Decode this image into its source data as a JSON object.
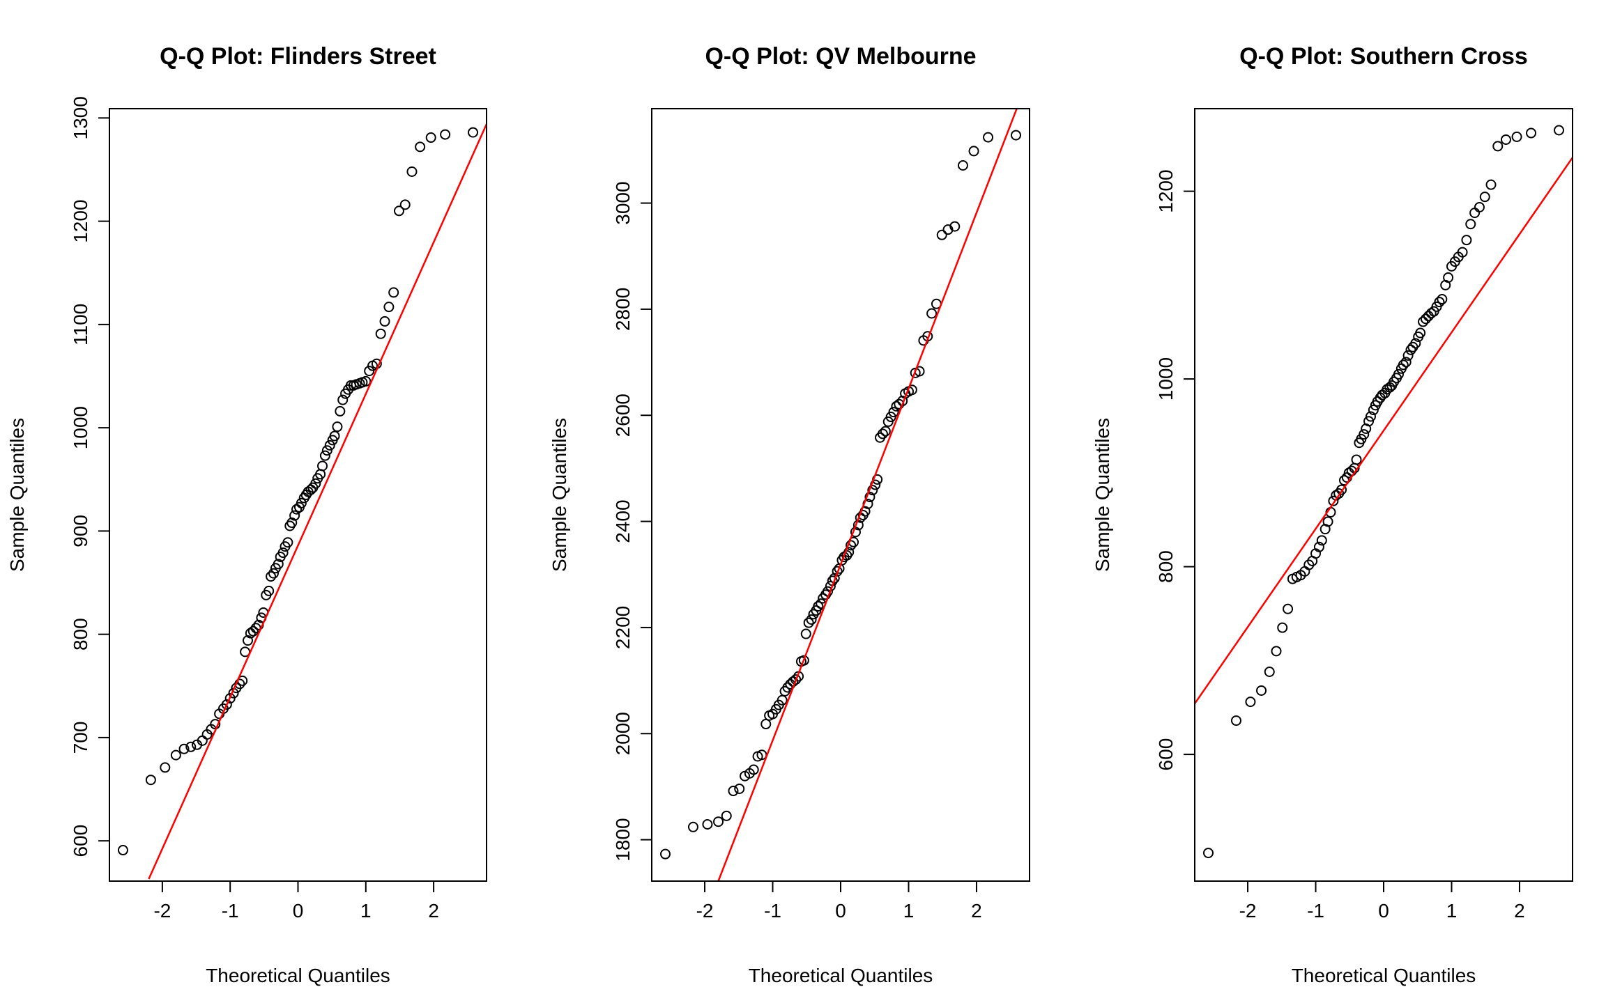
{
  "colors": {
    "point": "#000000",
    "line": "#ff0000",
    "frame": "#000000",
    "background": "#ffffff"
  },
  "chart_data": [
    {
      "type": "scatter",
      "title": "Q-Q Plot: Flinders Street",
      "xlabel": "Theoretical Quantiles",
      "ylabel": "Sample Quantiles",
      "xlim": [
        -2.78,
        2.78
      ],
      "ylim": [
        561,
        1309
      ],
      "xticks": [
        -2,
        -1,
        0,
        1,
        2
      ],
      "xtick_labels": [
        "-2",
        "-1",
        "0",
        "1",
        "2"
      ],
      "yticks": [
        600,
        700,
        800,
        900,
        1000,
        1100,
        1200,
        1300
      ],
      "ytick_labels": [
        "600",
        "700",
        "800",
        "900",
        "1000",
        "1100",
        "1200",
        "1300"
      ],
      "ref_line": {
        "x": [
          -2.2,
          2.8
        ],
        "y": [
          563,
          1297
        ]
      },
      "x": [
        -2.58,
        -2.17,
        -1.96,
        -1.8,
        -1.68,
        -1.58,
        -1.49,
        -1.41,
        -1.34,
        -1.28,
        -1.22,
        -1.16,
        -1.1,
        -1.05,
        -1.0,
        -0.95,
        -0.91,
        -0.86,
        -0.82,
        -0.78,
        -0.74,
        -0.7,
        -0.66,
        -0.62,
        -0.58,
        -0.54,
        -0.51,
        -0.47,
        -0.43,
        -0.4,
        -0.36,
        -0.33,
        -0.29,
        -0.26,
        -0.22,
        -0.19,
        -0.15,
        -0.12,
        -0.09,
        -0.05,
        -0.02,
        0.02,
        0.05,
        0.09,
        0.12,
        0.15,
        0.19,
        0.22,
        0.26,
        0.29,
        0.33,
        0.36,
        0.4,
        0.43,
        0.47,
        0.51,
        0.54,
        0.58,
        0.62,
        0.66,
        0.7,
        0.74,
        0.78,
        0.82,
        0.86,
        0.91,
        0.95,
        1.0,
        1.05,
        1.1,
        1.16,
        1.22,
        1.28,
        1.34,
        1.41,
        1.49,
        1.58,
        1.68,
        1.8,
        1.96,
        2.17,
        2.58
      ],
      "y": [
        591,
        659,
        671,
        683,
        689,
        691,
        693,
        697,
        703,
        708,
        713,
        723,
        728,
        732,
        738,
        743,
        748,
        752,
        755,
        783,
        794,
        801,
        803,
        806,
        809,
        816,
        821,
        838,
        842,
        856,
        859,
        864,
        868,
        875,
        879,
        885,
        889,
        905,
        908,
        915,
        921,
        923,
        927,
        932,
        935,
        938,
        940,
        942,
        946,
        951,
        955,
        963,
        973,
        978,
        983,
        988,
        992,
        1001,
        1016,
        1027,
        1033,
        1037,
        1041,
        1041,
        1042,
        1043,
        1044,
        1045,
        1055,
        1060,
        1062,
        1091,
        1103,
        1117,
        1131,
        1210,
        1216,
        1248,
        1272,
        1281,
        1284,
        1286
      ]
    },
    {
      "type": "scatter",
      "title": "Q-Q Plot: QV Melbourne",
      "xlabel": "Theoretical Quantiles",
      "ylabel": "Sample Quantiles",
      "xlim": [
        -2.78,
        2.78
      ],
      "ylim": [
        1722,
        3178
      ],
      "xticks": [
        -2,
        -1,
        0,
        1,
        2
      ],
      "xtick_labels": [
        "-2",
        "-1",
        "0",
        "1",
        "2"
      ],
      "yticks": [
        1800,
        2000,
        2200,
        2400,
        2600,
        2800,
        3000
      ],
      "ytick_labels": [
        "1800",
        "2000",
        "2200",
        "2400",
        "2600",
        "2800",
        "3000"
      ],
      "ref_line": {
        "x": [
          -1.8,
          2.8
        ],
        "y": [
          1722,
          3247
        ]
      },
      "x": [
        -2.58,
        -2.17,
        -1.96,
        -1.8,
        -1.68,
        -1.58,
        -1.49,
        -1.41,
        -1.34,
        -1.28,
        -1.22,
        -1.16,
        -1.1,
        -1.05,
        -1.0,
        -0.95,
        -0.91,
        -0.86,
        -0.82,
        -0.78,
        -0.74,
        -0.7,
        -0.66,
        -0.62,
        -0.58,
        -0.54,
        -0.51,
        -0.47,
        -0.43,
        -0.4,
        -0.36,
        -0.33,
        -0.29,
        -0.26,
        -0.22,
        -0.19,
        -0.15,
        -0.12,
        -0.09,
        -0.05,
        -0.02,
        0.02,
        0.05,
        0.09,
        0.12,
        0.15,
        0.19,
        0.22,
        0.26,
        0.29,
        0.33,
        0.36,
        0.4,
        0.43,
        0.47,
        0.51,
        0.54,
        0.58,
        0.62,
        0.66,
        0.7,
        0.74,
        0.78,
        0.82,
        0.86,
        0.91,
        0.95,
        1.0,
        1.05,
        1.1,
        1.16,
        1.22,
        1.28,
        1.34,
        1.41,
        1.49,
        1.58,
        1.68,
        1.8,
        1.96,
        2.17,
        2.58
      ],
      "y": [
        1773,
        1824,
        1829,
        1834,
        1845,
        1892,
        1896,
        1920,
        1925,
        1932,
        1957,
        1960,
        2018,
        2034,
        2037,
        2046,
        2054,
        2063,
        2080,
        2087,
        2093,
        2098,
        2102,
        2108,
        2136,
        2138,
        2188,
        2209,
        2215,
        2225,
        2232,
        2240,
        2245,
        2255,
        2262,
        2268,
        2278,
        2288,
        2293,
        2306,
        2311,
        2327,
        2333,
        2336,
        2342,
        2355,
        2361,
        2380,
        2393,
        2407,
        2412,
        2419,
        2433,
        2446,
        2459,
        2469,
        2479,
        2558,
        2565,
        2570,
        2588,
        2597,
        2606,
        2617,
        2621,
        2627,
        2641,
        2645,
        2648,
        2680,
        2683,
        2741,
        2749,
        2792,
        2810,
        2940,
        2950,
        2956,
        3071,
        3098,
        3124,
        3128
      ]
    },
    {
      "type": "scatter",
      "title": "Q-Q Plot: Southern Cross",
      "xlabel": "Theoretical Quantiles",
      "ylabel": "Sample Quantiles",
      "xlim": [
        -2.78,
        2.78
      ],
      "ylim": [
        465,
        1288
      ],
      "xticks": [
        -2,
        -1,
        0,
        1,
        2
      ],
      "xtick_labels": [
        "-2",
        "-1",
        "0",
        "1",
        "2"
      ],
      "yticks": [
        600,
        800,
        1000,
        1200
      ],
      "ytick_labels": [
        "600",
        "800",
        "1000",
        "1200"
      ],
      "ref_line": {
        "x": [
          -2.8,
          2.8
        ],
        "y": [
          652,
          1238
        ]
      },
      "x": [
        -2.58,
        -2.17,
        -1.96,
        -1.8,
        -1.68,
        -1.58,
        -1.49,
        -1.41,
        -1.34,
        -1.28,
        -1.22,
        -1.16,
        -1.1,
        -1.05,
        -1.0,
        -0.95,
        -0.91,
        -0.86,
        -0.82,
        -0.78,
        -0.74,
        -0.7,
        -0.66,
        -0.62,
        -0.58,
        -0.54,
        -0.51,
        -0.47,
        -0.43,
        -0.4,
        -0.36,
        -0.33,
        -0.29,
        -0.26,
        -0.22,
        -0.19,
        -0.15,
        -0.12,
        -0.09,
        -0.05,
        -0.02,
        0.02,
        0.05,
        0.09,
        0.12,
        0.15,
        0.19,
        0.22,
        0.26,
        0.29,
        0.33,
        0.36,
        0.4,
        0.43,
        0.47,
        0.51,
        0.54,
        0.58,
        0.62,
        0.66,
        0.7,
        0.74,
        0.78,
        0.82,
        0.86,
        0.91,
        0.95,
        1.0,
        1.05,
        1.1,
        1.16,
        1.22,
        1.28,
        1.34,
        1.41,
        1.49,
        1.58,
        1.68,
        1.8,
        1.96,
        2.17,
        2.58
      ],
      "y": [
        495,
        636,
        656,
        668,
        688,
        710,
        735,
        755,
        787,
        789,
        791,
        795,
        802,
        806,
        814,
        821,
        828,
        840,
        848,
        858,
        870,
        876,
        878,
        882,
        892,
        895,
        900,
        902,
        905,
        914,
        932,
        936,
        941,
        947,
        955,
        960,
        967,
        972,
        976,
        980,
        983,
        985,
        989,
        991,
        993,
        997,
        1001,
        1005,
        1011,
        1015,
        1018,
        1025,
        1031,
        1034,
        1038,
        1045,
        1049,
        1061,
        1064,
        1067,
        1070,
        1072,
        1077,
        1082,
        1085,
        1100,
        1108,
        1120,
        1125,
        1130,
        1135,
        1148,
        1165,
        1177,
        1183,
        1194,
        1207,
        1248,
        1255,
        1258,
        1262,
        1265
      ]
    }
  ]
}
